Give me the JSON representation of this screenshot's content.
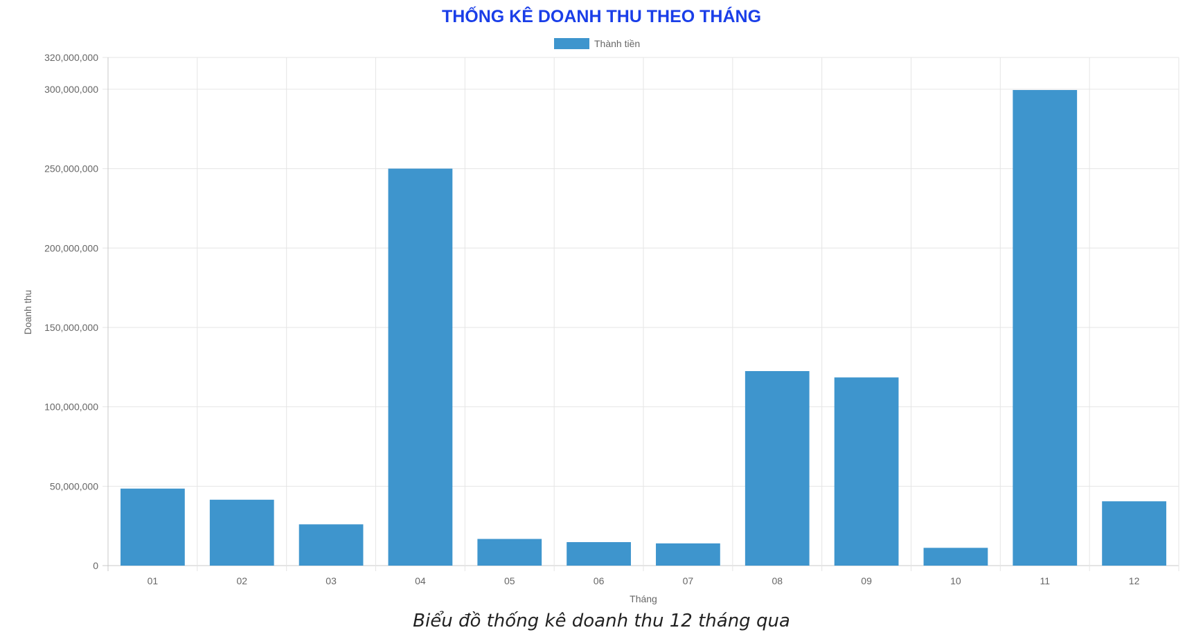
{
  "chart_data": {
    "type": "bar",
    "title": "THỐNG KÊ DOANH THU THEO THÁNG",
    "caption": "Biểu đồ thống kê doanh thu 12 tháng qua",
    "xlabel": "Tháng",
    "ylabel": "Doanh thu",
    "categories": [
      "01",
      "02",
      "03",
      "04",
      "05",
      "06",
      "07",
      "08",
      "09",
      "10",
      "11",
      "12"
    ],
    "series": [
      {
        "name": "Thành tiền",
        "color": "#3e95cd",
        "values": [
          48500000,
          41500000,
          26000000,
          250000000,
          16800000,
          14800000,
          14000000,
          122500000,
          118500000,
          11200000,
          299500000,
          40500000
        ]
      }
    ],
    "ylim": [
      0,
      320000000
    ],
    "yticks": [
      0,
      50000000,
      100000000,
      150000000,
      200000000,
      250000000,
      300000000,
      320000000
    ],
    "ytick_labels": [
      "0",
      "50,000,000",
      "100,000,000",
      "150,000,000",
      "200,000,000",
      "250,000,000",
      "300,000,000",
      "320,000,000"
    ],
    "grid": true,
    "legend_position": "top-center"
  }
}
